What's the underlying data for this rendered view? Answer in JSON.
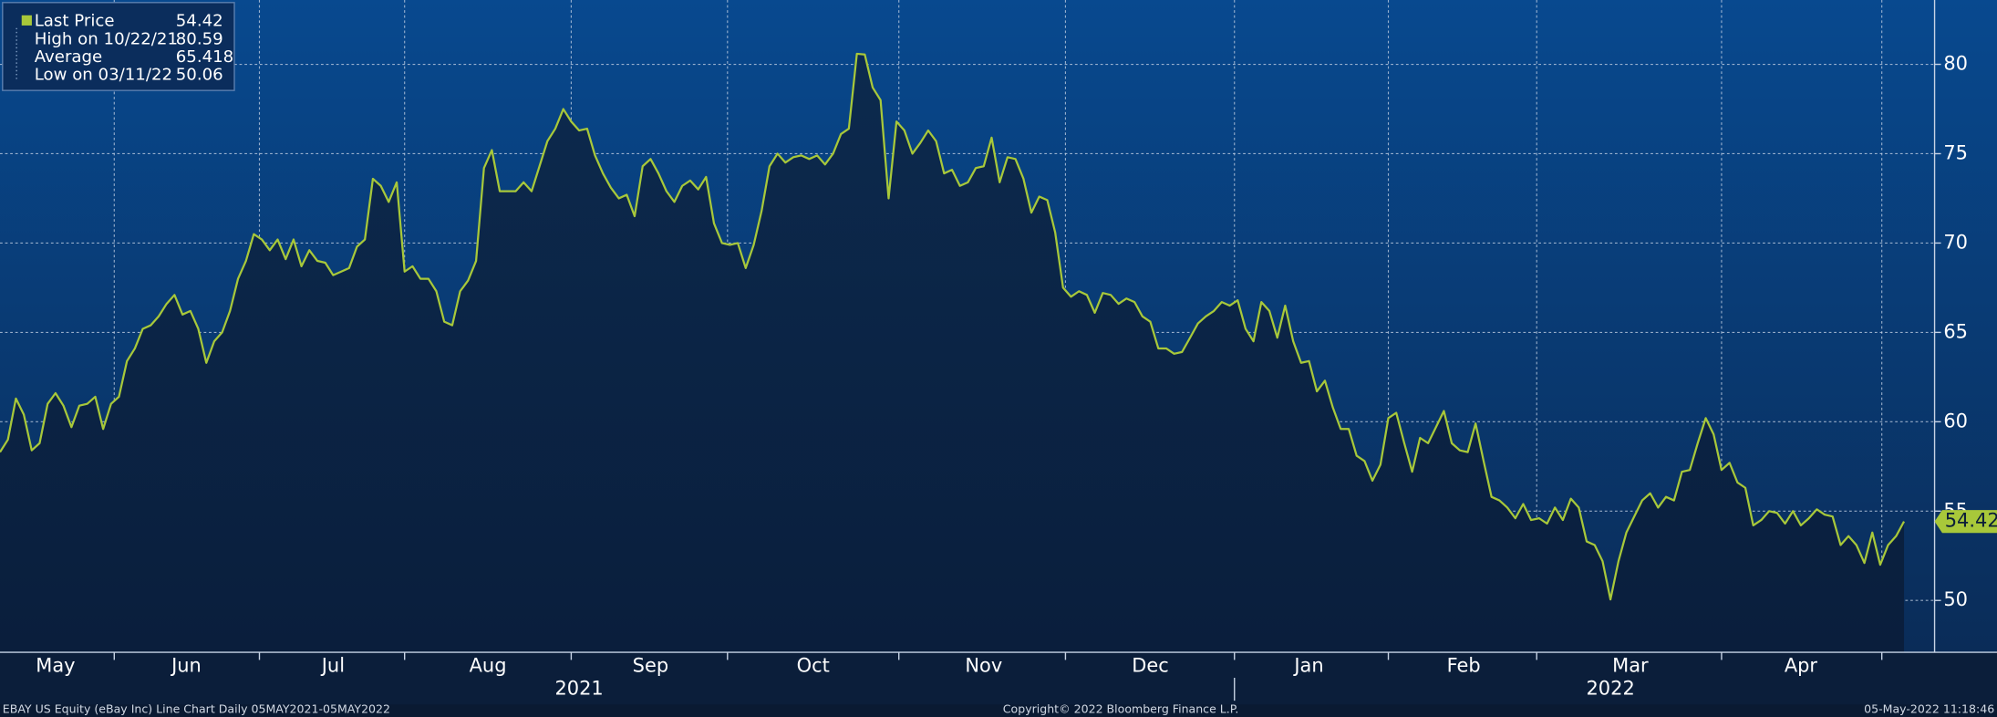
{
  "chart_data": {
    "type": "line",
    "series": [
      {
        "name": "Last Price",
        "color": "#a8c83a",
        "values": [
          58.3,
          59,
          61.3,
          60.4,
          58.4,
          58.8,
          61,
          61.6,
          60.9,
          59.7,
          60.9,
          61,
          61.4,
          59.6,
          61,
          61.4,
          63.4,
          64.1,
          65.2,
          65.4,
          65.9,
          66.6,
          67.1,
          66,
          66.2,
          65.2,
          63.3,
          64.5,
          65,
          66.2,
          68,
          69,
          70.5,
          70.2,
          69.6,
          70.2,
          69.1,
          70.2,
          68.7,
          69.6,
          69,
          68.9,
          68.2,
          68.4,
          68.6,
          69.8,
          70.2,
          73.6,
          73.2,
          72.3,
          73.4,
          68.4,
          68.7,
          68,
          68,
          67.3,
          65.6,
          65.4,
          67.3,
          67.9,
          69,
          74.2,
          75.2,
          72.9,
          72.9,
          72.9,
          73.4,
          72.9,
          74.3,
          75.7,
          76.4,
          77.5,
          76.8,
          76.3,
          76.4,
          74.9,
          73.9,
          73.1,
          72.5,
          72.7,
          71.5,
          74.3,
          74.7,
          73.9,
          72.9,
          72.3,
          73.2,
          73.5,
          73,
          73.7,
          71.1,
          70,
          69.9,
          70,
          68.6,
          69.9,
          71.8,
          74.3,
          75,
          74.5,
          74.8,
          74.9,
          74.7,
          74.9,
          74.4,
          75,
          76.1,
          76.4,
          80.59,
          80.55,
          78.7,
          78,
          72.5,
          76.8,
          76.3,
          75,
          75.6,
          76.3,
          75.7,
          73.9,
          74.1,
          73.2,
          73.4,
          74.2,
          74.3,
          75.9,
          73.4,
          74.8,
          74.7,
          73.6,
          71.7,
          72.6,
          72.4,
          70.6,
          67.5,
          67,
          67.3,
          67.1,
          66.1,
          67.2,
          67.1,
          66.6,
          66.9,
          66.7,
          65.9,
          65.6,
          64.1,
          64.1,
          63.8,
          63.9,
          64.7,
          65.5,
          65.9,
          66.2,
          66.7,
          66.5,
          66.8,
          65.2,
          64.5,
          66.7,
          66.2,
          64.7,
          66.5,
          64.5,
          63.3,
          63.4,
          61.7,
          62.3,
          60.8,
          59.6,
          59.6,
          58.1,
          57.8,
          56.7,
          57.6,
          60.2,
          60.5,
          58.8,
          57.2,
          59.1,
          58.8,
          59.7,
          60.6,
          58.8,
          58.4,
          58.3,
          59.9,
          57.8,
          55.8,
          55.6,
          55.2,
          54.6,
          55.4,
          54.5,
          54.6,
          54.3,
          55.2,
          54.5,
          55.7,
          55.2,
          53.3,
          53.1,
          52.2,
          50.06,
          52.2,
          53.8,
          54.7,
          55.6,
          56,
          55.2,
          55.8,
          55.6,
          57.2,
          57.3,
          58.8,
          60.2,
          59.3,
          57.3,
          57.7,
          56.6,
          56.3,
          54.2,
          54.5,
          55,
          54.9,
          54.3,
          55,
          54.2,
          54.6,
          55.1,
          54.8,
          54.7,
          53.1,
          53.6,
          53.1,
          52.1,
          53.8,
          52,
          53.1,
          53.6,
          54.42
        ]
      }
    ],
    "last_value": 54.42,
    "stats": [
      {
        "label": "High on 10/22/21",
        "value": 80.59
      },
      {
        "label": "Average",
        "value": 65.418
      },
      {
        "label": "Low on 03/11/22",
        "value": 50.06
      }
    ],
    "xlim": [
      0,
      244
    ],
    "xticks": [
      14.4,
      32.7,
      51,
      72,
      91.7,
      113.3,
      134.3,
      155.6,
      175,
      193.7,
      217,
      237.2
    ],
    "month_labels": [
      {
        "value": 7,
        "label": "May"
      },
      {
        "value": 23.5,
        "label": "Jun"
      },
      {
        "value": 42,
        "label": "Jul"
      },
      {
        "value": 61.5,
        "label": "Aug"
      },
      {
        "value": 82,
        "label": "Sep"
      },
      {
        "value": 102.5,
        "label": "Oct"
      },
      {
        "value": 124,
        "label": "Nov"
      },
      {
        "value": 145,
        "label": "Dec"
      },
      {
        "value": 165,
        "label": "Jan"
      },
      {
        "value": 184.5,
        "label": "Feb"
      },
      {
        "value": 205.5,
        "label": "Mar"
      },
      {
        "value": 227,
        "label": "Apr"
      }
    ],
    "year_labels": [
      {
        "value": 73,
        "label": "2021"
      },
      {
        "value": 203,
        "label": "2022"
      }
    ],
    "year_divider": 155.6,
    "ylim": [
      47.1,
      83.6
    ],
    "yticks": [
      50,
      55,
      60,
      65,
      70,
      75,
      80
    ],
    "grid": true,
    "footer_left": "EBAY US Equity (eBay Inc) Line Chart  Daily 05MAY2021-05MAY2022",
    "footer_center": "Copyright© 2022 Bloomberg Finance L.P.",
    "footer_right": "05-May-2022 11:18:46"
  }
}
